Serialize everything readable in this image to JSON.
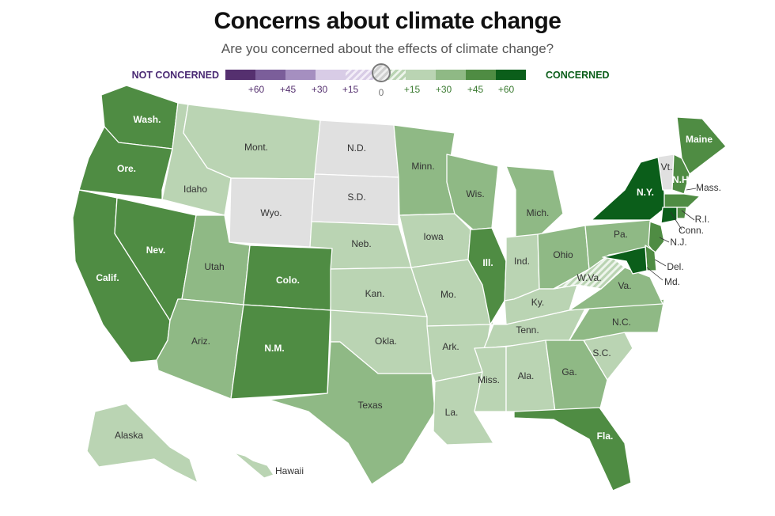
{
  "title": "Concerns about climate change",
  "subtitle": "Are you concerned about the effects of climate change?",
  "legend": {
    "left_label": "NOT CONCERNED",
    "right_label": "CONCERNED",
    "center_tick": "0",
    "left_ticks": [
      "+60",
      "+45",
      "+30",
      "+15"
    ],
    "right_ticks": [
      "+15",
      "+30",
      "+45",
      "+60"
    ],
    "bins": [
      {
        "level": "not_concerned_60",
        "color": "#55306f"
      },
      {
        "level": "not_concerned_45",
        "color": "#7b5e9a"
      },
      {
        "level": "not_concerned_30",
        "color": "#a58fc0"
      },
      {
        "level": "not_concerned_15",
        "color": "#d8cce6"
      },
      {
        "level": "neutral_neg",
        "color": "hatch-purple"
      },
      {
        "level": "neutral_pos",
        "color": "hatch-green"
      },
      {
        "level": "concerned_15",
        "color": "#bad4b3"
      },
      {
        "level": "concerned_30",
        "color": "#8fb985"
      },
      {
        "level": "concerned_45",
        "color": "#4f8c43"
      },
      {
        "level": "concerned_60",
        "color": "#0b5e1a"
      }
    ]
  },
  "colors": {
    "c60": "#0b5e1a",
    "c45": "#4f8c43",
    "c30": "#8fb985",
    "c15": "#bad4b3",
    "neutral": "#e0e0e0",
    "hatch": "#d6e4d2"
  },
  "states": [
    {
      "id": "wa",
      "label": "Wash.",
      "level": "c45"
    },
    {
      "id": "or",
      "label": "Ore.",
      "level": "c45"
    },
    {
      "id": "ca",
      "label": "Calif.",
      "level": "c45"
    },
    {
      "id": "nv",
      "label": "Nev.",
      "level": "c45"
    },
    {
      "id": "id",
      "label": "Idaho",
      "level": "c15"
    },
    {
      "id": "mt",
      "label": "Mont.",
      "level": "c15"
    },
    {
      "id": "wy",
      "label": "Wyo.",
      "level": "neutral"
    },
    {
      "id": "ut",
      "label": "Utah",
      "level": "c30"
    },
    {
      "id": "co",
      "label": "Colo.",
      "level": "c45"
    },
    {
      "id": "az",
      "label": "Ariz.",
      "level": "c30"
    },
    {
      "id": "nm",
      "label": "N.M.",
      "level": "c45"
    },
    {
      "id": "nd",
      "label": "N.D.",
      "level": "neutral"
    },
    {
      "id": "sd",
      "label": "S.D.",
      "level": "neutral"
    },
    {
      "id": "ne",
      "label": "Neb.",
      "level": "c15"
    },
    {
      "id": "ks",
      "label": "Kan.",
      "level": "c15"
    },
    {
      "id": "ok",
      "label": "Okla.",
      "level": "c15"
    },
    {
      "id": "tx",
      "label": "Texas",
      "level": "c30"
    },
    {
      "id": "mn",
      "label": "Minn.",
      "level": "c30"
    },
    {
      "id": "ia",
      "label": "Iowa",
      "level": "c15"
    },
    {
      "id": "mo",
      "label": "Mo.",
      "level": "c15"
    },
    {
      "id": "ar",
      "label": "Ark.",
      "level": "c15"
    },
    {
      "id": "la",
      "label": "La.",
      "level": "c15"
    },
    {
      "id": "wi",
      "label": "Wis.",
      "level": "c30"
    },
    {
      "id": "il",
      "label": "Ill.",
      "level": "c45"
    },
    {
      "id": "mi",
      "label": "Mich.",
      "level": "c30"
    },
    {
      "id": "in",
      "label": "Ind.",
      "level": "c15"
    },
    {
      "id": "oh",
      "label": "Ohio",
      "level": "c30"
    },
    {
      "id": "ky",
      "label": "Ky.",
      "level": "c15"
    },
    {
      "id": "tn",
      "label": "Tenn.",
      "level": "c15"
    },
    {
      "id": "ms",
      "label": "Miss.",
      "level": "c15"
    },
    {
      "id": "al",
      "label": "Ala.",
      "level": "c15"
    },
    {
      "id": "ga",
      "label": "Ga.",
      "level": "c30"
    },
    {
      "id": "fl",
      "label": "Fla.",
      "level": "c45"
    },
    {
      "id": "sc",
      "label": "S.C.",
      "level": "c15"
    },
    {
      "id": "nc",
      "label": "N.C.",
      "level": "c30"
    },
    {
      "id": "va",
      "label": "Va.",
      "level": "c30"
    },
    {
      "id": "wv",
      "label": "W.Va.",
      "level": "hatch"
    },
    {
      "id": "pa",
      "label": "Pa.",
      "level": "c30"
    },
    {
      "id": "ny",
      "label": "N.Y.",
      "level": "c60"
    },
    {
      "id": "me",
      "label": "Maine",
      "level": "c45"
    },
    {
      "id": "vt",
      "label": "Vt.",
      "level": "neutral"
    },
    {
      "id": "nh",
      "label": "N.H.",
      "level": "c45"
    },
    {
      "id": "ma",
      "label": "Mass.",
      "level": "c45"
    },
    {
      "id": "ri",
      "label": "R.I.",
      "level": "c45"
    },
    {
      "id": "ct",
      "label": "Conn.",
      "level": "c60"
    },
    {
      "id": "nj",
      "label": "N.J.",
      "level": "c45"
    },
    {
      "id": "de",
      "label": "Del.",
      "level": "c45"
    },
    {
      "id": "md",
      "label": "Md.",
      "level": "c60"
    },
    {
      "id": "ak",
      "label": "Alaska",
      "level": "c15"
    },
    {
      "id": "hi",
      "label": "Hawaii",
      "level": "c15"
    }
  ]
}
